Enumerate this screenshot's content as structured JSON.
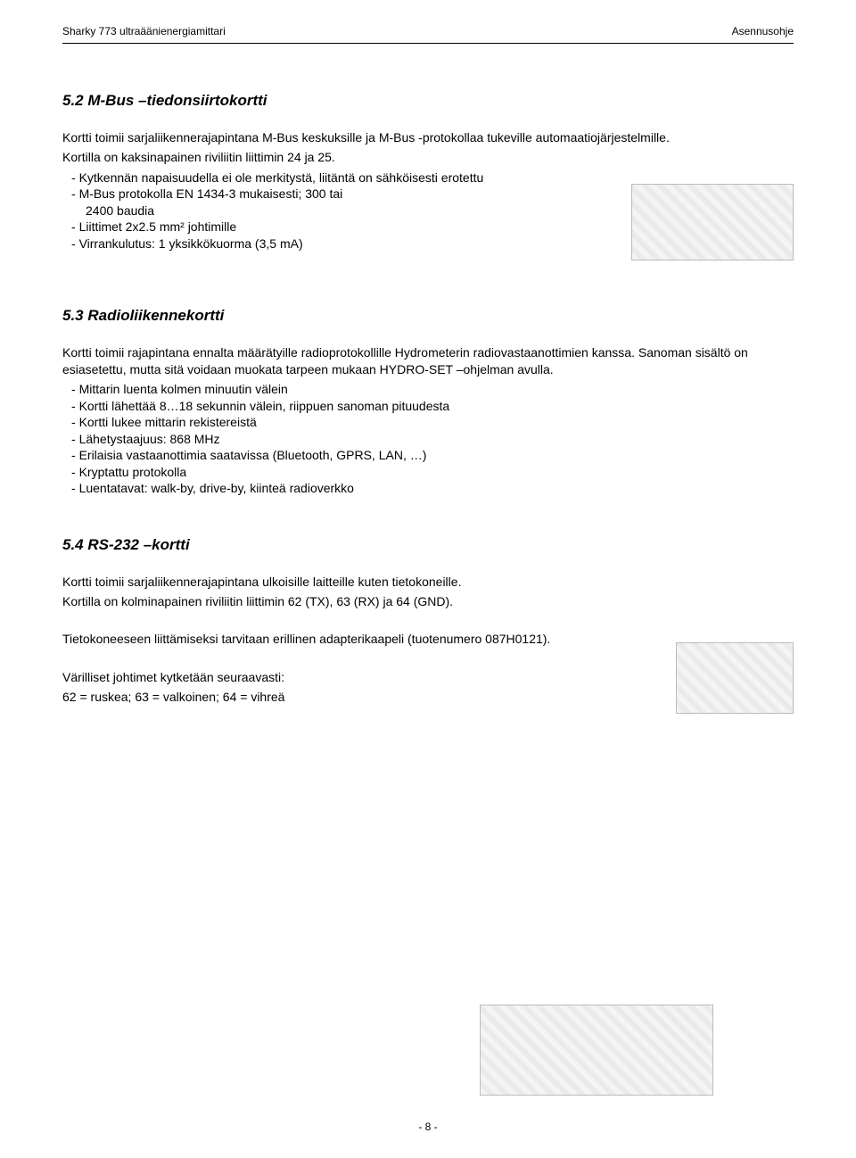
{
  "header": {
    "left": "Sharky 773 ultraäänienergiamittari",
    "right": "Asennusohje"
  },
  "section_52": {
    "heading": "5.2 M-Bus –tiedonsiirtokortti",
    "p1": "Kortti toimii sarjaliikennerajapintana M-Bus keskuksille ja M-Bus -protokollaa tukeville automaatiojärjestelmille.",
    "p2": "Kortilla on kaksinapainen riviliitin liittimin 24 ja 25.",
    "bullets": [
      "Kytkennän napaisuudella ei ole merkitystä, liitäntä on sähköisesti erotettu",
      "M-Bus protokolla EN 1434-3 mukaisesti; 300 tai",
      "2400 baudia",
      "Liittimet 2x2.5 mm² johtimille",
      "Virrankulutus: 1 yksikkökuorma (3,5 mA)"
    ]
  },
  "section_53": {
    "heading": "5.3 Radioliikennekortti",
    "p1": "Kortti toimii rajapintana ennalta määrätyille radioprotokollille Hydrometerin radiovastaanottimien kanssa. Sanoman sisältö on esiasetettu, mutta sitä voidaan muokata tarpeen mukaan HYDRO-SET –ohjelman avulla.",
    "bullets": [
      "Mittarin luenta kolmen minuutin välein",
      "Kortti lähettää 8…18 sekunnin välein, riippuen sanoman pituudesta",
      "Kortti lukee mittarin rekistereistä",
      "Lähetystaajuus: 868 MHz",
      "Erilaisia vastaanottimia saatavissa (Bluetooth, GPRS, LAN, …)",
      "Kryptattu protokolla",
      "Luentatavat: walk-by, drive-by, kiinteä radioverkko"
    ]
  },
  "section_54": {
    "heading": "5.4 RS-232 –kortti",
    "p1": "Kortti toimii sarjaliikennerajapintana ulkoisille laitteille kuten tietokoneille.",
    "p2": "Kortilla on kolminapainen riviliitin liittimin 62 (TX), 63 (RX) ja 64 (GND).",
    "p3": "Tietokoneeseen liittämiseksi tarvitaan erillinen adapterikaapeli (tuotenumero 087H0121).",
    "p4": "Värilliset johtimet kytketään seuraavasti:",
    "p5": "62 = ruskea; 63 = valkoinen; 64 = vihreä"
  },
  "footer": "- 8 -"
}
